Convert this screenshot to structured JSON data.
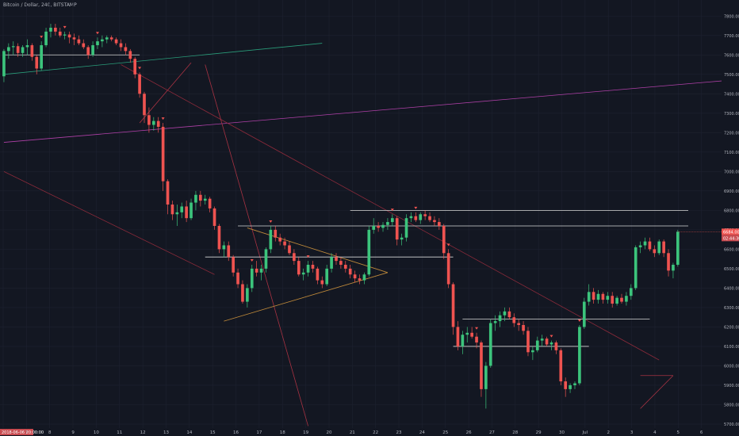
{
  "header": {
    "title": "Bitcoin / Dollar, 240, BITSTAMP"
  },
  "colors": {
    "background": "#131722",
    "up": "#26a69a",
    "up_bright": "#3cc47c",
    "down": "#ef5350",
    "grid": "#1e2230",
    "axis_text": "#b2b5be",
    "price_tag": "#ef5350",
    "price_tag_alt": "#c94b50"
  },
  "chart_data": {
    "type": "candlestick",
    "title": "Bitcoin / Dollar, 240, BITSTAMP",
    "ylim": [
      5700,
      7850
    ],
    "y_ticks": [
      7800,
      7700,
      7600,
      7500,
      7400,
      7300,
      7200,
      7100,
      7000,
      6900,
      6800,
      6700,
      6600,
      6500,
      6400,
      6300,
      6200,
      6100,
      6000,
      5900,
      5800,
      5700
    ],
    "x_ticks": [
      "2018-06-06 20:00:00",
      "7",
      "8",
      "9",
      "10",
      "11",
      "12",
      "13",
      "14",
      "15",
      "16",
      "17",
      "18",
      "19",
      "20",
      "21",
      "22",
      "23",
      "24",
      "25",
      "26",
      "27",
      "28",
      "29",
      "30",
      "Jul",
      "2",
      "3",
      "4",
      "5",
      "6"
    ],
    "price_tags": [
      "6684.00",
      "02:44:30"
    ],
    "candles": [
      [
        7490,
        7630,
        7460,
        7620
      ],
      [
        7620,
        7660,
        7580,
        7640
      ],
      [
        7640,
        7670,
        7600,
        7645
      ],
      [
        7645,
        7660,
        7590,
        7610
      ],
      [
        7610,
        7650,
        7590,
        7640
      ],
      [
        7640,
        7680,
        7600,
        7650
      ],
      [
        7650,
        7660,
        7570,
        7590
      ],
      [
        7590,
        7600,
        7500,
        7530
      ],
      [
        7530,
        7670,
        7520,
        7650
      ],
      [
        7650,
        7740,
        7640,
        7720
      ],
      [
        7720,
        7760,
        7690,
        7740
      ],
      [
        7740,
        7760,
        7700,
        7720
      ],
      [
        7720,
        7740,
        7690,
        7700
      ],
      [
        7700,
        7720,
        7680,
        7705
      ],
      [
        7705,
        7720,
        7660,
        7690
      ],
      [
        7690,
        7710,
        7650,
        7680
      ],
      [
        7680,
        7700,
        7650,
        7660
      ],
      [
        7660,
        7680,
        7630,
        7640
      ],
      [
        7640,
        7650,
        7580,
        7600
      ],
      [
        7600,
        7670,
        7590,
        7650
      ],
      [
        7650,
        7690,
        7630,
        7670
      ],
      [
        7670,
        7700,
        7640,
        7680
      ],
      [
        7680,
        7700,
        7660,
        7690
      ],
      [
        7690,
        7700,
        7670,
        7680
      ],
      [
        7680,
        7690,
        7650,
        7660
      ],
      [
        7660,
        7680,
        7620,
        7640
      ],
      [
        7640,
        7660,
        7600,
        7620
      ],
      [
        7620,
        7630,
        7560,
        7580
      ],
      [
        7580,
        7590,
        7480,
        7500
      ],
      [
        7500,
        7510,
        7380,
        7400
      ],
      [
        7400,
        7410,
        7250,
        7290
      ],
      [
        7290,
        7330,
        7200,
        7240
      ],
      [
        7240,
        7280,
        7210,
        7260
      ],
      [
        7260,
        7280,
        7200,
        7230
      ],
      [
        7230,
        7250,
        6900,
        6950
      ],
      [
        6950,
        6960,
        6780,
        6830
      ],
      [
        6830,
        6850,
        6750,
        6780
      ],
      [
        6780,
        6830,
        6720,
        6790
      ],
      [
        6790,
        6840,
        6760,
        6820
      ],
      [
        6820,
        6850,
        6740,
        6760
      ],
      [
        6760,
        6860,
        6750,
        6840
      ],
      [
        6840,
        6900,
        6800,
        6880
      ],
      [
        6880,
        6900,
        6820,
        6850
      ],
      [
        6850,
        6880,
        6830,
        6860
      ],
      [
        6860,
        6870,
        6790,
        6810
      ],
      [
        6810,
        6820,
        6700,
        6720
      ],
      [
        6720,
        6730,
        6580,
        6600
      ],
      [
        6600,
        6640,
        6560,
        6620
      ],
      [
        6620,
        6640,
        6540,
        6560
      ],
      [
        6560,
        6570,
        6460,
        6480
      ],
      [
        6480,
        6500,
        6400,
        6420
      ],
      [
        6420,
        6440,
        6320,
        6330
      ],
      [
        6330,
        6420,
        6300,
        6400
      ],
      [
        6400,
        6520,
        6380,
        6500
      ],
      [
        6500,
        6540,
        6460,
        6480
      ],
      [
        6480,
        6520,
        6440,
        6500
      ],
      [
        6500,
        6610,
        6480,
        6600
      ],
      [
        6600,
        6720,
        6580,
        6700
      ],
      [
        6700,
        6720,
        6640,
        6660
      ],
      [
        6660,
        6680,
        6620,
        6640
      ],
      [
        6640,
        6660,
        6600,
        6620
      ],
      [
        6620,
        6640,
        6570,
        6580
      ],
      [
        6580,
        6600,
        6520,
        6540
      ],
      [
        6540,
        6560,
        6460,
        6470
      ],
      [
        6470,
        6500,
        6440,
        6480
      ],
      [
        6480,
        6540,
        6460,
        6520
      ],
      [
        6520,
        6540,
        6480,
        6500
      ],
      [
        6500,
        6510,
        6420,
        6440
      ],
      [
        6440,
        6460,
        6400,
        6420
      ],
      [
        6420,
        6520,
        6410,
        6500
      ],
      [
        6500,
        6580,
        6480,
        6560
      ],
      [
        6560,
        6580,
        6520,
        6540
      ],
      [
        6540,
        6560,
        6500,
        6520
      ],
      [
        6520,
        6540,
        6480,
        6500
      ],
      [
        6500,
        6520,
        6450,
        6470
      ],
      [
        6470,
        6490,
        6430,
        6450
      ],
      [
        6450,
        6470,
        6420,
        6440
      ],
      [
        6440,
        6480,
        6420,
        6470
      ],
      [
        6470,
        6720,
        6460,
        6700
      ],
      [
        6700,
        6760,
        6680,
        6720
      ],
      [
        6720,
        6740,
        6690,
        6710
      ],
      [
        6710,
        6740,
        6690,
        6725
      ],
      [
        6725,
        6760,
        6700,
        6740
      ],
      [
        6740,
        6780,
        6720,
        6760
      ],
      [
        6760,
        6770,
        6620,
        6650
      ],
      [
        6650,
        6680,
        6620,
        6660
      ],
      [
        6660,
        6780,
        6640,
        6760
      ],
      [
        6760,
        6790,
        6740,
        6770
      ],
      [
        6770,
        6790,
        6740,
        6750
      ],
      [
        6750,
        6790,
        6730,
        6780
      ],
      [
        6780,
        6800,
        6750,
        6770
      ],
      [
        6770,
        6790,
        6740,
        6750
      ],
      [
        6750,
        6770,
        6720,
        6740
      ],
      [
        6740,
        6760,
        6700,
        6720
      ],
      [
        6720,
        6730,
        6550,
        6580
      ],
      [
        6580,
        6600,
        6400,
        6420
      ],
      [
        6420,
        6430,
        6160,
        6200
      ],
      [
        6200,
        6230,
        6080,
        6100
      ],
      [
        6100,
        6180,
        6060,
        6160
      ],
      [
        6160,
        6200,
        6120,
        6170
      ],
      [
        6170,
        6200,
        6140,
        6150
      ],
      [
        6150,
        6170,
        6090,
        6120
      ],
      [
        6120,
        6130,
        5840,
        5880
      ],
      [
        5880,
        6020,
        5780,
        6000
      ],
      [
        6000,
        6240,
        5990,
        6220
      ],
      [
        6220,
        6260,
        6180,
        6230
      ],
      [
        6230,
        6280,
        6200,
        6260
      ],
      [
        6260,
        6300,
        6230,
        6280
      ],
      [
        6280,
        6300,
        6240,
        6250
      ],
      [
        6250,
        6270,
        6200,
        6220
      ],
      [
        6220,
        6240,
        6180,
        6210
      ],
      [
        6210,
        6230,
        6160,
        6180
      ],
      [
        6180,
        6200,
        6050,
        6070
      ],
      [
        6070,
        6100,
        6030,
        6080
      ],
      [
        6080,
        6150,
        6070,
        6130
      ],
      [
        6130,
        6160,
        6100,
        6140
      ],
      [
        6140,
        6150,
        6100,
        6110
      ],
      [
        6110,
        6130,
        6080,
        6120
      ],
      [
        6120,
        6130,
        6060,
        6080
      ],
      [
        6080,
        6090,
        5900,
        5920
      ],
      [
        5920,
        5940,
        5840,
        5880
      ],
      [
        5880,
        5910,
        5860,
        5900
      ],
      [
        5900,
        5920,
        5880,
        5910
      ],
      [
        5910,
        6210,
        5900,
        6200
      ],
      [
        6200,
        6350,
        6190,
        6330
      ],
      [
        6330,
        6420,
        6310,
        6380
      ],
      [
        6380,
        6400,
        6320,
        6340
      ],
      [
        6340,
        6390,
        6320,
        6370
      ],
      [
        6370,
        6380,
        6320,
        6340
      ],
      [
        6340,
        6380,
        6320,
        6360
      ],
      [
        6360,
        6380,
        6300,
        6320
      ],
      [
        6320,
        6360,
        6310,
        6350
      ],
      [
        6350,
        6370,
        6320,
        6330
      ],
      [
        6330,
        6380,
        6310,
        6360
      ],
      [
        6360,
        6420,
        6340,
        6400
      ],
      [
        6400,
        6620,
        6390,
        6610
      ],
      [
        6610,
        6640,
        6580,
        6620
      ],
      [
        6620,
        6660,
        6600,
        6640
      ],
      [
        6640,
        6660,
        6590,
        6600
      ],
      [
        6600,
        6620,
        6560,
        6580
      ],
      [
        6580,
        6650,
        6570,
        6640
      ],
      [
        6640,
        6650,
        6560,
        6580
      ],
      [
        6580,
        6600,
        6460,
        6490
      ],
      [
        6490,
        6530,
        6450,
        6520
      ],
      [
        6520,
        6700,
        6510,
        6690
      ]
    ],
    "horizontal_levels": [
      {
        "price": 7600,
        "from": 0,
        "to": 29
      },
      {
        "price": 6800,
        "from": 74,
        "to": 149
      },
      {
        "price": 6720,
        "from": 50,
        "to": 149
      },
      {
        "price": 6560,
        "from": 43,
        "to": 96
      },
      {
        "price": 6240,
        "from": 98,
        "to": 138
      },
      {
        "price": 6100,
        "from": 96,
        "to": 125
      }
    ],
    "trendlines": [
      {
        "x1": 0,
        "p1": 7500,
        "x2": 68,
        "p2": 7660,
        "color": "#2a9d7a"
      },
      {
        "x1": 0,
        "p1": 7150,
        "x2": 160,
        "p2": 7480,
        "color": "#b040a8"
      },
      {
        "x1": 25,
        "p1": 7550,
        "x2": 140,
        "p2": 6030,
        "color": "#8a2a3a"
      },
      {
        "x1": 0,
        "p1": 7000,
        "x2": 45,
        "p2": 6470,
        "color": "#8a2a3a"
      },
      {
        "x1": 43,
        "p1": 7550,
        "x2": 65,
        "p2": 5690,
        "color": "#a83242"
      },
      {
        "x1": 47,
        "p1": 6230,
        "x2": 82,
        "p2": 6480,
        "color": "#c08a3a"
      },
      {
        "x1": 52,
        "p1": 6710,
        "x2": 82,
        "p2": 6480,
        "color": "#c08a3a"
      },
      {
        "x1": 29,
        "p1": 7250,
        "x2": 40,
        "p2": 7560,
        "color": "#a83242"
      },
      {
        "x1": 136,
        "p1": 5780,
        "x2": 143,
        "p2": 5950,
        "color": "#a83242"
      },
      {
        "x1": 136,
        "p1": 5950,
        "x2": 143,
        "p2": 5950,
        "color": "#a83242"
      }
    ],
    "markers": [
      {
        "i": 8,
        "dir": "down"
      },
      {
        "i": 13,
        "dir": "down"
      },
      {
        "i": 20,
        "dir": "down"
      },
      {
        "i": 29,
        "dir": "down"
      },
      {
        "i": 34,
        "dir": "down"
      },
      {
        "i": 53,
        "dir": "down"
      },
      {
        "i": 57,
        "dir": "down"
      },
      {
        "i": 65,
        "dir": "down"
      },
      {
        "i": 83,
        "dir": "down"
      },
      {
        "i": 88,
        "dir": "down"
      },
      {
        "i": 95,
        "dir": "down"
      },
      {
        "i": 101,
        "dir": "down"
      },
      {
        "i": 117,
        "dir": "down"
      },
      {
        "i": 123,
        "dir": "down"
      },
      {
        "i": 145,
        "dir": "down"
      },
      {
        "i": 150,
        "dir": "down"
      },
      {
        "i": 155,
        "dir": "down"
      },
      {
        "i": 161,
        "dir": "down"
      }
    ]
  }
}
